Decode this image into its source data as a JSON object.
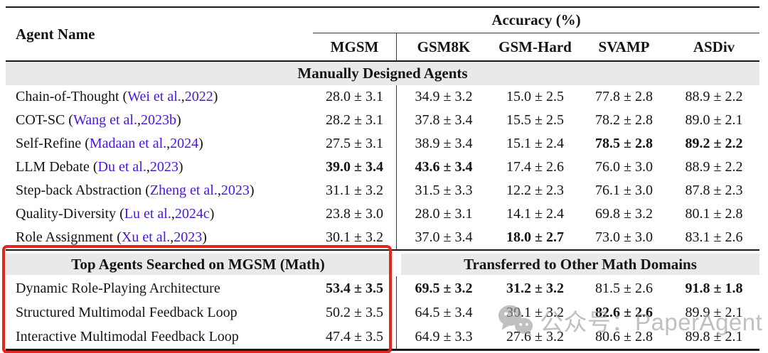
{
  "header": {
    "agent_name_label": "Agent Name",
    "accuracy_label": "Accuracy (%)",
    "columns": [
      "MGSM",
      "GSM8K",
      "GSM-Hard",
      "SVAMP",
      "ASDiv"
    ]
  },
  "sections": [
    {
      "title": "Manually Designed Agents",
      "rows": [
        {
          "name": "Chain-of-Thought",
          "authors": "Wei et al.",
          "year": "2022",
          "values": [
            "28.0 ± 3.1",
            "34.9 ± 3.2",
            "15.0 ± 2.5",
            "77.8 ± 2.8",
            "88.9 ± 2.2"
          ],
          "bold": [
            false,
            false,
            false,
            false,
            false
          ]
        },
        {
          "name": "COT-SC",
          "authors": "Wang et al.",
          "year": "2023b",
          "values": [
            "28.2 ± 3.1",
            "37.8 ± 3.4",
            "15.5 ± 2.5",
            "78.2 ± 2.8",
            "89.0 ± 2.1"
          ],
          "bold": [
            false,
            false,
            false,
            false,
            false
          ]
        },
        {
          "name": "Self-Refine",
          "authors": "Madaan et al.",
          "year": "2024",
          "values": [
            "27.5 ± 3.1",
            "38.9 ± 3.4",
            "15.1 ± 2.4",
            "78.5 ± 2.8",
            "89.2 ± 2.2"
          ],
          "bold": [
            false,
            false,
            false,
            true,
            true
          ]
        },
        {
          "name": "LLM Debate",
          "authors": "Du et al.",
          "year": "2023",
          "values": [
            "39.0 ± 3.4",
            "43.6 ± 3.4",
            "17.4 ± 2.6",
            "76.0 ± 3.0",
            "88.9 ± 2.2"
          ],
          "bold": [
            true,
            true,
            false,
            false,
            false
          ]
        },
        {
          "name": "Step-back Abstraction",
          "authors": "Zheng et al.",
          "year": "2023",
          "values": [
            "31.1 ± 3.2",
            "31.5 ± 3.3",
            "12.2 ± 2.3",
            "76.1 ± 3.0",
            "87.8 ± 2.3"
          ],
          "bold": [
            false,
            false,
            false,
            false,
            false
          ]
        },
        {
          "name": "Quality-Diversity",
          "authors": "Lu et al.",
          "year": "2024c",
          "values": [
            "23.8 ± 3.0",
            "28.0 ± 3.1",
            "14.1 ± 2.4",
            "69.8 ± 3.2",
            "80.1 ± 2.8"
          ],
          "bold": [
            false,
            false,
            false,
            false,
            false
          ]
        },
        {
          "name": "Role Assignment",
          "authors": "Xu et al.",
          "year": "2023",
          "values": [
            "30.1 ± 3.2",
            "37.0 ± 3.4",
            "18.0 ± 2.7",
            "73.0 ± 3.0",
            "83.1 ± 2.6"
          ],
          "bold": [
            false,
            false,
            true,
            false,
            false
          ]
        }
      ]
    },
    {
      "title_left": "Top Agents Searched on MGSM (Math)",
      "title_right": "Transferred to Other Math Domains",
      "rows": [
        {
          "name": "Dynamic Role-Playing Architecture",
          "values": [
            "53.4 ± 3.5",
            "69.5 ± 3.2",
            "31.2 ± 3.2",
            "81.5 ± 2.6",
            "91.8 ± 1.8"
          ],
          "bold": [
            true,
            true,
            true,
            false,
            true
          ]
        },
        {
          "name": "Structured Multimodal Feedback Loop",
          "values": [
            "50.2 ± 3.5",
            "64.5 ± 3.4",
            "30.1 ± 3.2",
            "82.6 ± 2.6",
            "89.9 ± 2.1"
          ],
          "bold": [
            false,
            false,
            false,
            true,
            false
          ]
        },
        {
          "name": "Interactive Multimodal Feedback Loop",
          "values": [
            "47.4 ± 3.5",
            "64.9 ± 3.3",
            "27.6 ± 3.2",
            "80.6 ± 2.8",
            "89.8 ± 2.1"
          ],
          "bold": [
            false,
            false,
            false,
            false,
            false
          ]
        }
      ]
    }
  ],
  "watermark": {
    "icon": "wechat-icon",
    "text": "公众号：PaperAgent"
  },
  "colors": {
    "citation": "#4d15e3",
    "highlight_box": "#e5261d",
    "section_band": "#e9e9e9",
    "watermark": "#9b9b9b"
  }
}
